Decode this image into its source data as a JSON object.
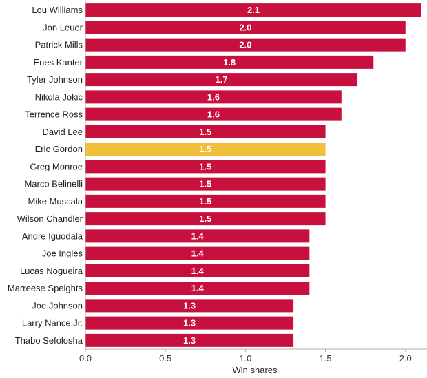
{
  "chart_data": {
    "type": "bar",
    "orientation": "horizontal",
    "title": "",
    "xlabel": "Win shares",
    "ylabel": "",
    "xlim": [
      0,
      2.1
    ],
    "xticks": [
      0.0,
      0.5,
      1.0,
      1.5,
      2.0
    ],
    "xtick_labels": [
      "0.0",
      "0.5",
      "1.0",
      "1.5",
      "2.0"
    ],
    "grid": false,
    "categories": [
      "Lou Williams",
      "Jon Leuer",
      "Patrick Mills",
      "Enes Kanter",
      "Tyler Johnson",
      "Nikola Jokic",
      "Terrence Ross",
      "David Lee",
      "Eric Gordon",
      "Greg Monroe",
      "Marco Belinelli",
      "Mike Muscala",
      "Wilson Chandler",
      "Andre Iguodala",
      "Joe Ingles",
      "Lucas Nogueira",
      "Marreese Speights",
      "Joe Johnson",
      "Larry Nance Jr.",
      "Thabo Sefolosha"
    ],
    "values": [
      2.1,
      2.0,
      2.0,
      1.8,
      1.7,
      1.6,
      1.6,
      1.5,
      1.5,
      1.5,
      1.5,
      1.5,
      1.5,
      1.4,
      1.4,
      1.4,
      1.4,
      1.3,
      1.3,
      1.3
    ],
    "value_labels": [
      "2.1",
      "2.0",
      "2.0",
      "1.8",
      "1.7",
      "1.6",
      "1.6",
      "1.5",
      "1.5",
      "1.5",
      "1.5",
      "1.5",
      "1.5",
      "1.4",
      "1.4",
      "1.4",
      "1.4",
      "1.3",
      "1.3",
      "1.3"
    ],
    "highlight": "Eric Gordon",
    "colors": {
      "bar": "#c8103e",
      "highlight": "#f2bf3a",
      "axis": "#b0b0b0"
    }
  }
}
